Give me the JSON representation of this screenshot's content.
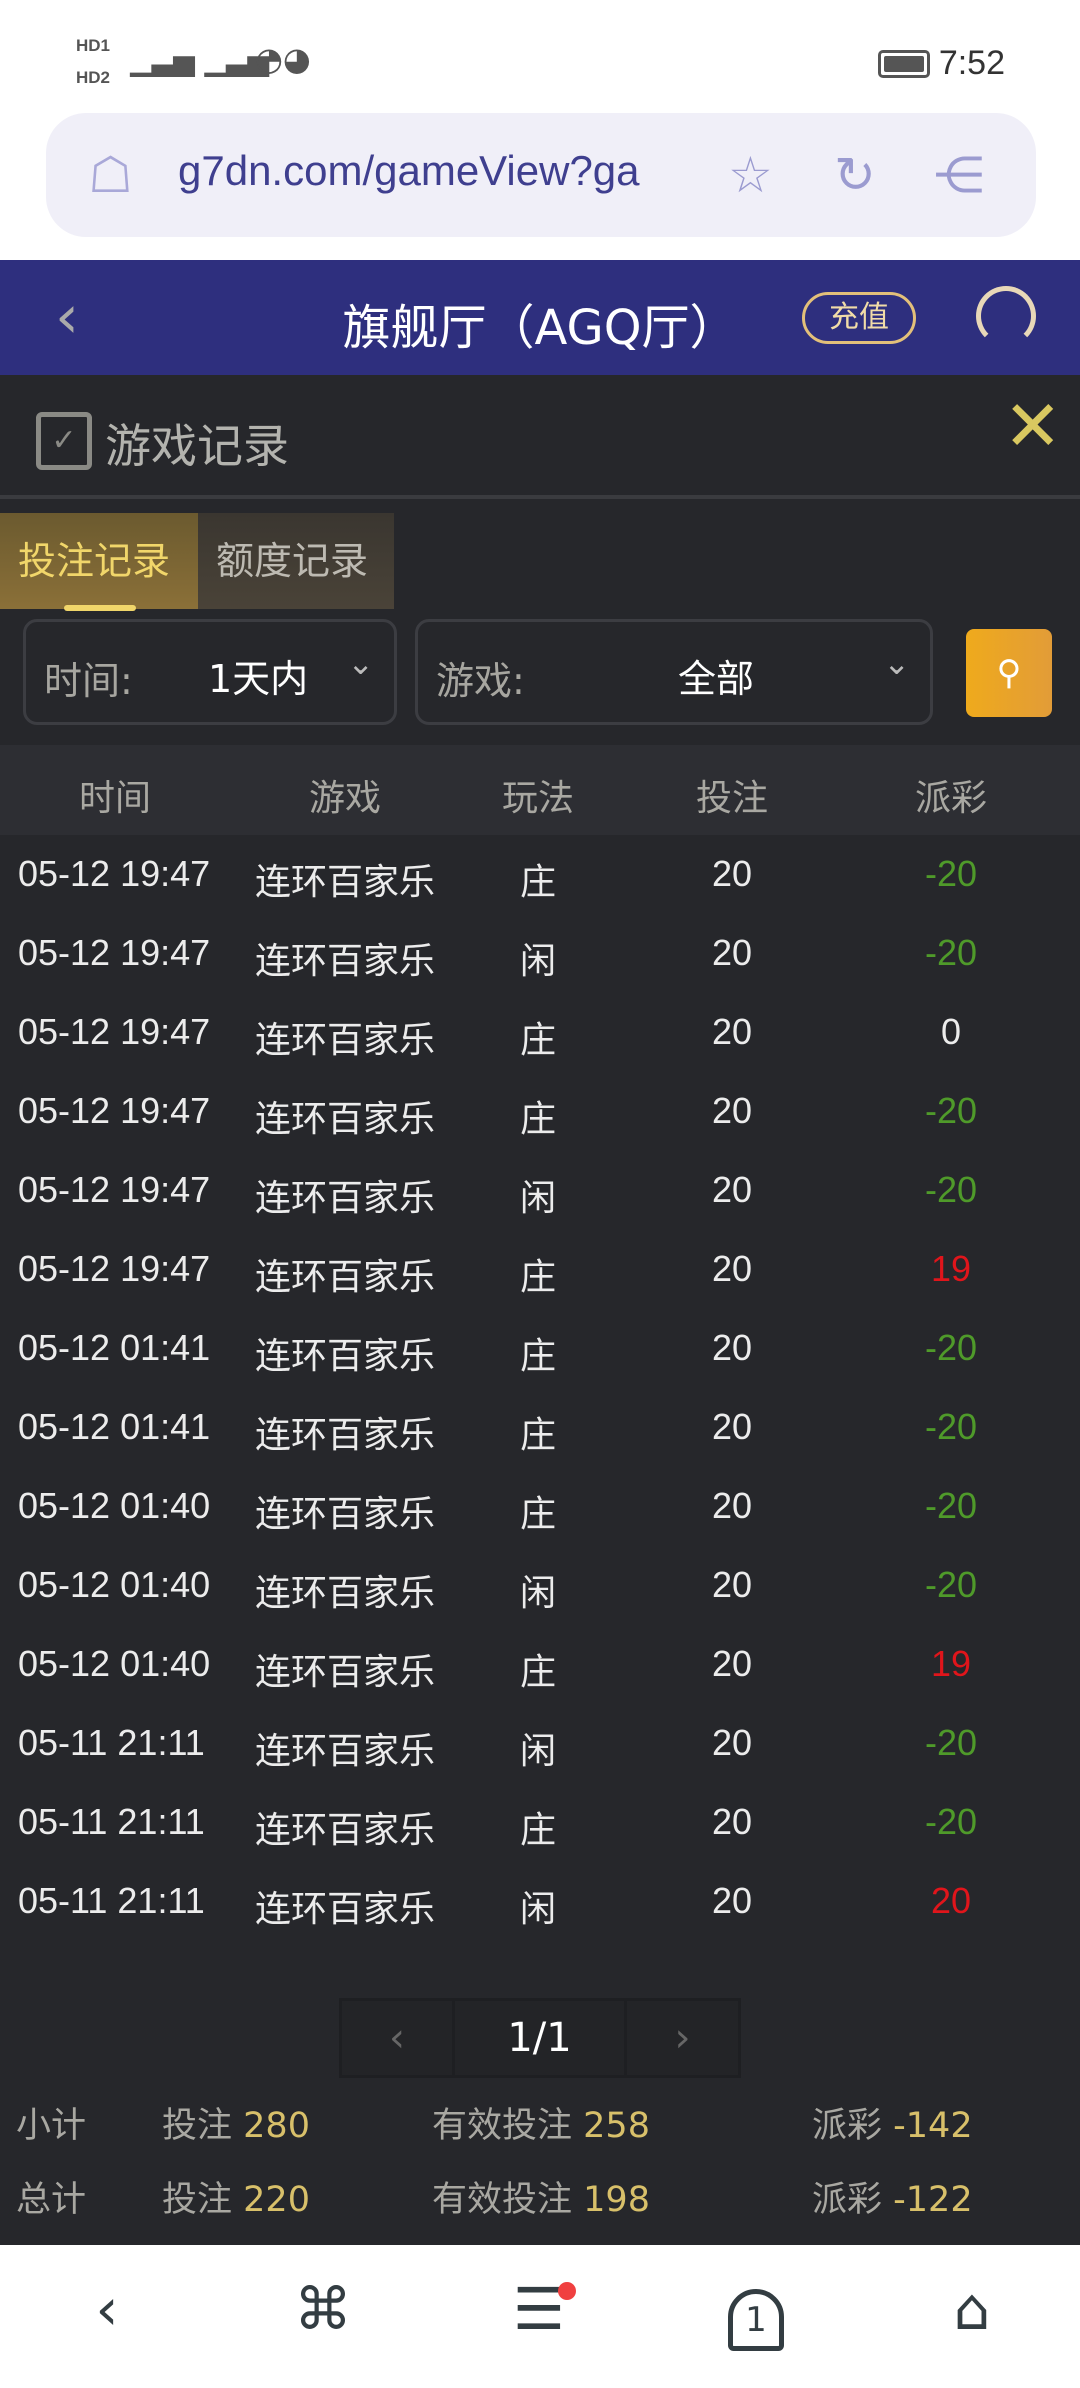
{
  "status_bar": {
    "time": "7:52",
    "indicators": [
      "HD1",
      "HD2",
      "5G",
      "4G",
      "wifi"
    ]
  },
  "browser": {
    "url": "g7dn.com/gameView?ga"
  },
  "header": {
    "title": "旗舰厅（AGQ厅）",
    "recharge": "充值"
  },
  "modal": {
    "title": "游戏记录",
    "tabs": [
      {
        "label": "投注记录",
        "active": true
      },
      {
        "label": "额度记录",
        "active": false
      }
    ]
  },
  "filters": {
    "time_label": "时间:",
    "time_value": "1天内",
    "game_label": "游戏:",
    "game_value": "全部"
  },
  "table": {
    "headers": [
      "时间",
      "游戏",
      "玩法",
      "投注",
      "派彩"
    ],
    "rows": [
      [
        "05-12 19:47",
        "连环百家乐",
        "庄",
        "20",
        "-20"
      ],
      [
        "05-12 19:47",
        "连环百家乐",
        "闲",
        "20",
        "-20"
      ],
      [
        "05-12 19:47",
        "连环百家乐",
        "庄",
        "20",
        "0"
      ],
      [
        "05-12 19:47",
        "连环百家乐",
        "庄",
        "20",
        "-20"
      ],
      [
        "05-12 19:47",
        "连环百家乐",
        "闲",
        "20",
        "-20"
      ],
      [
        "05-12 19:47",
        "连环百家乐",
        "庄",
        "20",
        "19"
      ],
      [
        "05-12 01:41",
        "连环百家乐",
        "庄",
        "20",
        "-20"
      ],
      [
        "05-12 01:41",
        "连环百家乐",
        "庄",
        "20",
        "-20"
      ],
      [
        "05-12 01:40",
        "连环百家乐",
        "庄",
        "20",
        "-20"
      ],
      [
        "05-12 01:40",
        "连环百家乐",
        "闲",
        "20",
        "-20"
      ],
      [
        "05-12 01:40",
        "连环百家乐",
        "庄",
        "20",
        "19"
      ],
      [
        "05-11 21:11",
        "连环百家乐",
        "闲",
        "20",
        "-20"
      ],
      [
        "05-11 21:11",
        "连环百家乐",
        "庄",
        "20",
        "-20"
      ],
      [
        "05-11 21:11",
        "连环百家乐",
        "闲",
        "20",
        "20"
      ]
    ]
  },
  "colors": {
    "loss": "#4f9a2a",
    "win": "#e0151b",
    "zero": "#ececec",
    "accent": "#d8c06a",
    "header_bg": "#2e2f7e"
  },
  "pagination": {
    "page": "1/1",
    "prev": "‹",
    "next": "›"
  },
  "summary": {
    "subtotal": {
      "label": "小计",
      "bet_label": "投注",
      "bet": "280",
      "valid_label": "有效投注",
      "valid": "258",
      "payout_label": "派彩",
      "payout": "-142"
    },
    "total": {
      "label": "总计",
      "bet_label": "投注",
      "bet": "220",
      "valid_label": "有效投注",
      "valid": "198",
      "payout_label": "派彩",
      "payout": "-122"
    }
  },
  "nav": {
    "tab_count": "1"
  }
}
